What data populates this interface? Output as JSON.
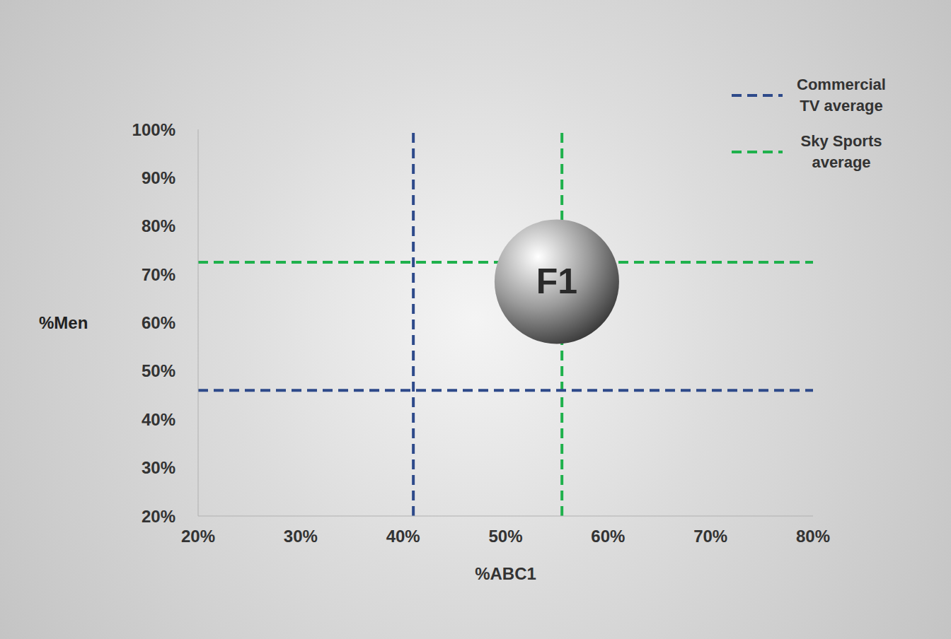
{
  "chart_data": {
    "type": "scatter",
    "x_label": "%ABC1",
    "y_label": "%Men",
    "xlim": [
      20,
      80
    ],
    "xticks": [
      {
        "value": 20,
        "label": "20%"
      },
      {
        "value": 30,
        "label": "30%"
      },
      {
        "value": 40,
        "label": "40%"
      },
      {
        "value": 50,
        "label": "50%"
      },
      {
        "value": 60,
        "label": "60%"
      },
      {
        "value": 70,
        "label": "70%"
      },
      {
        "value": 80,
        "label": "80%"
      }
    ],
    "ylim": [
      20,
      100
    ],
    "yticks": [
      {
        "value": 20,
        "label": "20%"
      },
      {
        "value": 30,
        "label": "30%"
      },
      {
        "value": 40,
        "label": "40%"
      },
      {
        "value": 50,
        "label": "50%"
      },
      {
        "value": 60,
        "label": "60%"
      },
      {
        "value": 70,
        "label": "70%"
      },
      {
        "value": 80,
        "label": "80%"
      },
      {
        "value": 90,
        "label": "90%"
      },
      {
        "value": 100,
        "label": "100%"
      }
    ],
    "series": [
      {
        "name": "F1",
        "color": "#9a9a9a",
        "x": [
          55
        ],
        "values": [
          68.5
        ]
      }
    ],
    "reference_lines": [
      {
        "name": "Commercial TV average",
        "color": "#2e4a8a",
        "x": 41,
        "y": 46,
        "line_style": "dashed"
      },
      {
        "name": "Sky Sports average",
        "color": "#1fb14c",
        "x": 55.5,
        "y": 72.5,
        "line_style": "dashed"
      }
    ],
    "legend": "top-right",
    "grid": false
  }
}
